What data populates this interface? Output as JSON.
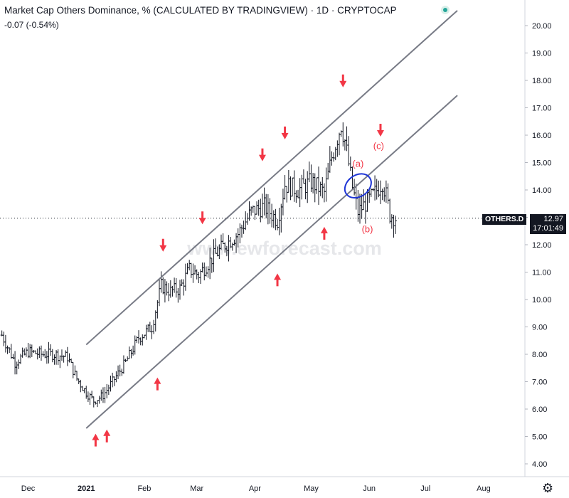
{
  "header": {
    "title": "Market Cap Others Dominance, % (CALCULATED BY TRADINGVIEW) · 1D · CRYPTOCAP",
    "change": "-0.07 (-0.54%)"
  },
  "symbol_label": "OTHERS.D",
  "last_price": "12.97",
  "countdown": "17:01:49",
  "watermark": "www.ewforecast.com",
  "wave_labels": [
    "(a)",
    "(b)",
    "(c)"
  ],
  "colors": {
    "bars": "#131722",
    "channel": "#787b86",
    "arrows": "#f23645",
    "ellipse": "#1e35d6",
    "wave_labels": "#f23645"
  },
  "icons": {
    "status": "green-dot-icon",
    "settings": "gear-icon"
  },
  "chart_data": {
    "type": "ohlc",
    "x_ticks": [
      "Dec",
      "2021",
      "Feb",
      "Mar",
      "Apr",
      "May",
      "Jun",
      "Jul",
      "Aug"
    ],
    "y_ticks": [
      "4.00",
      "5.00",
      "6.00",
      "7.00",
      "8.00",
      "9.00",
      "10.00",
      "11.00",
      "12.00",
      "13.00",
      "14.00",
      "15.00",
      "16.00",
      "17.00",
      "18.00",
      "19.00",
      "20.00"
    ],
    "ylim": [
      3.6,
      20.8
    ],
    "x_range": [
      "2020-11-16",
      "2021-08-20"
    ],
    "price_line": 12.97,
    "series": [
      {
        "d": "2020-11-17",
        "c": 8.7
      },
      {
        "d": "2020-11-24",
        "c": 7.7
      },
      {
        "d": "2020-12-01",
        "c": 8.1
      },
      {
        "d": "2020-12-08",
        "c": 8.0
      },
      {
        "d": "2020-12-15",
        "c": 8.0
      },
      {
        "d": "2020-12-22",
        "c": 7.9
      },
      {
        "d": "2020-12-27",
        "c": 7.1
      },
      {
        "d": "2021-01-01",
        "c": 6.6
      },
      {
        "d": "2021-01-05",
        "c": 6.3
      },
      {
        "d": "2021-01-10",
        "c": 6.5
      },
      {
        "d": "2021-01-15",
        "c": 7.0
      },
      {
        "d": "2021-01-22",
        "c": 7.7
      },
      {
        "d": "2021-01-29",
        "c": 8.6
      },
      {
        "d": "2021-02-05",
        "c": 9.0
      },
      {
        "d": "2021-02-10",
        "c": 10.5
      },
      {
        "d": "2021-02-15",
        "c": 10.3
      },
      {
        "d": "2021-02-20",
        "c": 10.4
      },
      {
        "d": "2021-02-25",
        "c": 11.1
      },
      {
        "d": "2021-03-02",
        "c": 10.9
      },
      {
        "d": "2021-03-09",
        "c": 11.5
      },
      {
        "d": "2021-03-16",
        "c": 12.0
      },
      {
        "d": "2021-03-23",
        "c": 12.4
      },
      {
        "d": "2021-03-30",
        "c": 13.2
      },
      {
        "d": "2021-04-06",
        "c": 13.4
      },
      {
        "d": "2021-04-13",
        "c": 12.9
      },
      {
        "d": "2021-04-17",
        "c": 14.2
      },
      {
        "d": "2021-04-24",
        "c": 14.0
      },
      {
        "d": "2021-05-01",
        "c": 14.3
      },
      {
        "d": "2021-05-08",
        "c": 13.9
      },
      {
        "d": "2021-05-12",
        "c": 15.2
      },
      {
        "d": "2021-05-17",
        "c": 16.4
      },
      {
        "d": "2021-05-19",
        "c": 15.8
      },
      {
        "d": "2021-05-23",
        "c": 14.1
      },
      {
        "d": "2021-05-26",
        "c": 13.2
      },
      {
        "d": "2021-05-30",
        "c": 13.5
      },
      {
        "d": "2021-06-03",
        "c": 13.8
      },
      {
        "d": "2021-06-06",
        "c": 14.1
      },
      {
        "d": "2021-06-08",
        "c": 14.3
      },
      {
        "d": "2021-06-10",
        "c": 13.8
      },
      {
        "d": "2021-06-12",
        "c": 13.1
      },
      {
        "d": "2021-06-15",
        "c": 12.97
      }
    ],
    "annotations": {
      "channel_upper": [
        [
          "2021-01-01",
          8.35
        ],
        [
          "2021-07-18",
          20.55
        ]
      ],
      "channel_lower": [
        [
          "2021-01-01",
          5.3
        ],
        [
          "2021-07-18",
          17.45
        ]
      ],
      "down_arrows": [
        [
          "2021-02-11",
          11.8
        ],
        [
          "2021-03-04",
          12.8
        ],
        [
          "2021-04-05",
          15.1
        ],
        [
          "2021-04-17",
          15.9
        ],
        [
          "2021-05-18",
          17.8
        ],
        [
          "2021-06-07",
          16.0
        ]
      ],
      "up_arrows": [
        [
          "2021-01-06",
          5.05
        ],
        [
          "2021-01-12",
          5.2
        ],
        [
          "2021-02-08",
          7.1
        ],
        [
          "2021-04-13",
          10.9
        ],
        [
          "2021-05-08",
          12.6
        ]
      ],
      "ellipse": [
        "2021-05-26",
        14.15
      ],
      "labels": [
        [
          "(a)",
          "2021-05-26",
          14.85
        ],
        [
          "(b)",
          "2021-05-31",
          12.45
        ],
        [
          "(c)",
          "2021-06-06",
          15.5
        ]
      ]
    }
  }
}
